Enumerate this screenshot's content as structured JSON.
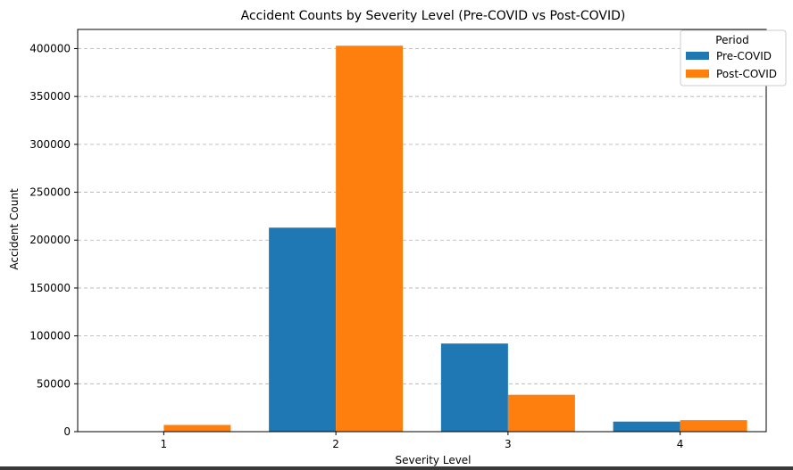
{
  "chart_data": {
    "type": "bar",
    "title": "Accident Counts by Severity Level (Pre-COVID vs Post-COVID)",
    "xlabel": "Severity Level",
    "ylabel": "Accident Count",
    "categories": [
      "1",
      "2",
      "3",
      "4"
    ],
    "series": [
      {
        "name": "Pre-COVID",
        "color": "#1f77b4",
        "values": [
          0,
          213000,
          92000,
          10500
        ]
      },
      {
        "name": "Post-COVID",
        "color": "#ff7f0e",
        "values": [
          7000,
          403000,
          38500,
          12000
        ]
      }
    ],
    "ylim": [
      0,
      420000
    ],
    "yticks": [
      0,
      50000,
      100000,
      150000,
      200000,
      250000,
      300000,
      350000,
      400000
    ],
    "grid": "y-dashed",
    "legend": {
      "title": "Period",
      "placement": "top-right"
    }
  }
}
